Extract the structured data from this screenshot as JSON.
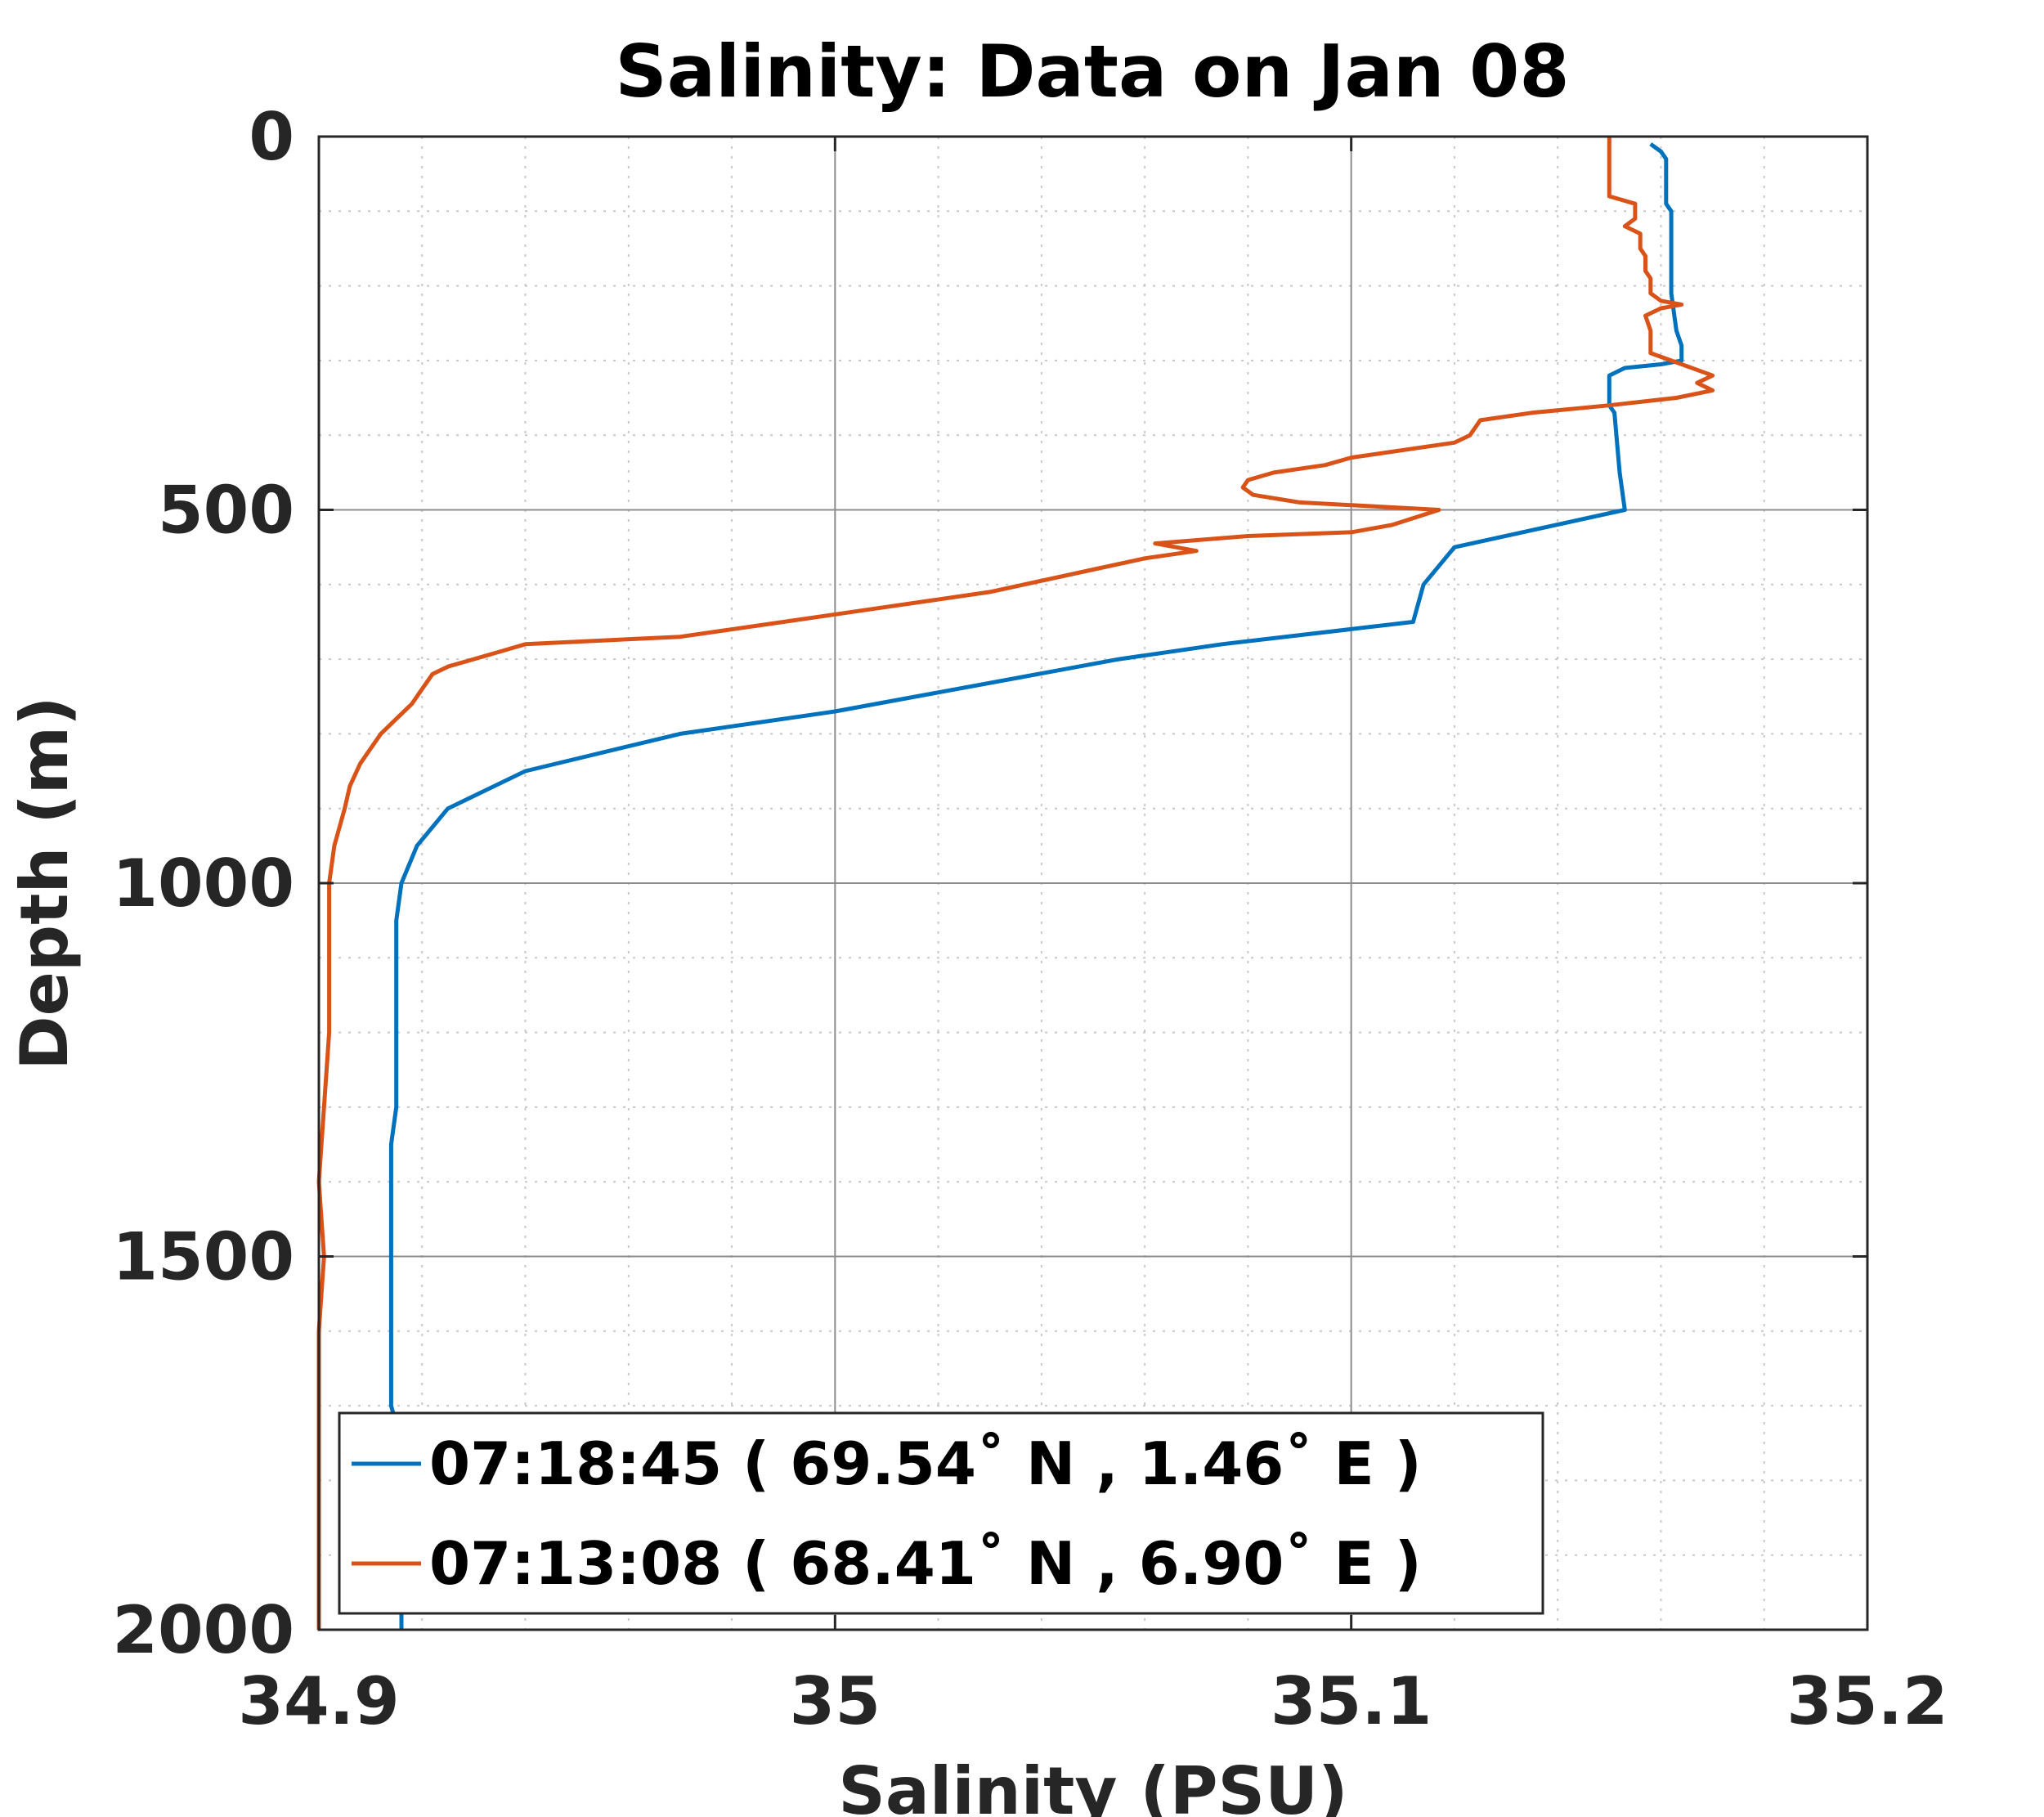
{
  "chart_data": {
    "type": "line",
    "title": "Salinity: Data on Jan 08",
    "xlabel": "Salinity (PSU)",
    "ylabel": "Depth (m)",
    "xlim": [
      34.9,
      35.2
    ],
    "ylim": [
      0,
      2000
    ],
    "y_reversed": true,
    "xticks": [
      34.9,
      35.0,
      35.1,
      35.2
    ],
    "xtick_labels": [
      "34.9",
      "35",
      "35.1",
      "35.2"
    ],
    "yticks": [
      0,
      500,
      1000,
      1500,
      2000
    ],
    "ytick_labels": [
      "0",
      "500",
      "1000",
      "1500",
      "2000"
    ],
    "grid": true,
    "minor_grid": true,
    "legend_position": "bottom-left",
    "series": [
      {
        "name": "07:18:45 ( 69.54˚ N , 1.46˚ E )",
        "color": "#0072BD",
        "points": [
          [
            35.158,
            10
          ],
          [
            35.16,
            20
          ],
          [
            35.161,
            30
          ],
          [
            35.161,
            90
          ],
          [
            35.162,
            100
          ],
          [
            35.162,
            210
          ],
          [
            35.163,
            260
          ],
          [
            35.164,
            280
          ],
          [
            35.164,
            300
          ],
          [
            35.16,
            305
          ],
          [
            35.153,
            310
          ],
          [
            35.15,
            320
          ],
          [
            35.15,
            360
          ],
          [
            35.151,
            370
          ],
          [
            35.152,
            450
          ],
          [
            35.153,
            500
          ],
          [
            35.12,
            550
          ],
          [
            35.114,
            600
          ],
          [
            35.112,
            650
          ],
          [
            35.075,
            680
          ],
          [
            35.055,
            700
          ],
          [
            35.0,
            770
          ],
          [
            34.97,
            800
          ],
          [
            34.94,
            850
          ],
          [
            34.925,
            900
          ],
          [
            34.919,
            950
          ],
          [
            34.916,
            1000
          ],
          [
            34.915,
            1050
          ],
          [
            34.915,
            1300
          ],
          [
            34.914,
            1350
          ],
          [
            34.914,
            1700
          ],
          [
            34.916,
            1750
          ],
          [
            34.916,
            2000
          ]
        ]
      },
      {
        "name": "07:13:08 ( 68.41˚ N , 6.90˚ E )",
        "color": "#D95319",
        "points": [
          [
            35.15,
            0
          ],
          [
            35.15,
            80
          ],
          [
            35.155,
            90
          ],
          [
            35.155,
            110
          ],
          [
            35.153,
            120
          ],
          [
            35.156,
            130
          ],
          [
            35.156,
            150
          ],
          [
            35.157,
            160
          ],
          [
            35.157,
            180
          ],
          [
            35.158,
            190
          ],
          [
            35.158,
            210
          ],
          [
            35.16,
            220
          ],
          [
            35.164,
            225
          ],
          [
            35.16,
            230
          ],
          [
            35.157,
            240
          ],
          [
            35.158,
            260
          ],
          [
            35.158,
            290
          ],
          [
            35.162,
            300
          ],
          [
            35.17,
            320
          ],
          [
            35.167,
            330
          ],
          [
            35.17,
            340
          ],
          [
            35.163,
            350
          ],
          [
            35.15,
            360
          ],
          [
            35.135,
            370
          ],
          [
            35.125,
            380
          ],
          [
            35.123,
            400
          ],
          [
            35.12,
            410
          ],
          [
            35.1,
            430
          ],
          [
            35.095,
            440
          ],
          [
            35.085,
            450
          ],
          [
            35.08,
            460
          ],
          [
            35.079,
            470
          ],
          [
            35.081,
            480
          ],
          [
            35.09,
            490
          ],
          [
            35.117,
            500
          ],
          [
            35.108,
            520
          ],
          [
            35.1,
            530
          ],
          [
            35.08,
            535
          ],
          [
            35.062,
            545
          ],
          [
            35.07,
            555
          ],
          [
            35.06,
            565
          ],
          [
            35.05,
            580
          ],
          [
            35.03,
            610
          ],
          [
            35.01,
            630
          ],
          [
            34.99,
            650
          ],
          [
            34.97,
            670
          ],
          [
            34.94,
            680
          ],
          [
            34.935,
            690
          ],
          [
            34.93,
            700
          ],
          [
            34.925,
            710
          ],
          [
            34.922,
            720
          ],
          [
            34.92,
            740
          ],
          [
            34.918,
            760
          ],
          [
            34.915,
            780
          ],
          [
            34.912,
            800
          ],
          [
            34.91,
            820
          ],
          [
            34.908,
            840
          ],
          [
            34.906,
            870
          ],
          [
            34.905,
            900
          ],
          [
            34.903,
            950
          ],
          [
            34.902,
            1000
          ],
          [
            34.902,
            1200
          ],
          [
            34.901,
            1300
          ],
          [
            34.9,
            1400
          ],
          [
            34.901,
            1500
          ],
          [
            34.9,
            1600
          ],
          [
            34.9,
            2000
          ]
        ]
      }
    ]
  }
}
